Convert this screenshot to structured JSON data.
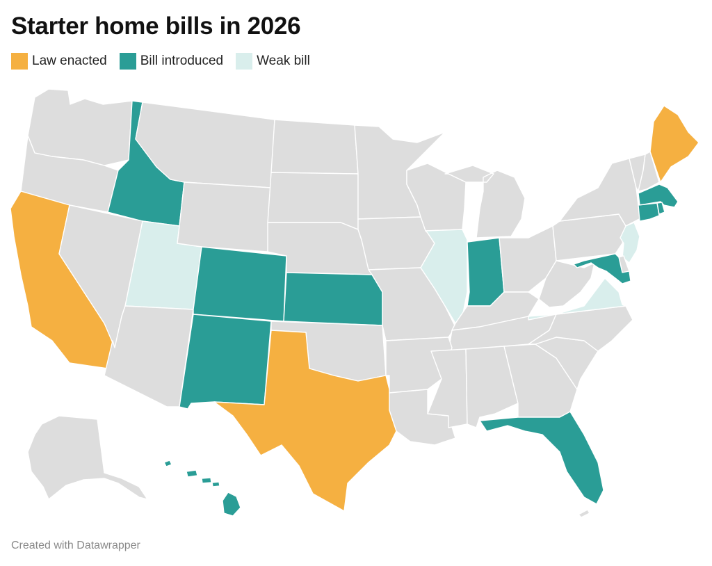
{
  "title": "Starter home bills in 2026",
  "legend": [
    {
      "key": "enacted",
      "label": "Law enacted",
      "color": "#F5B041"
    },
    {
      "key": "introduced",
      "label": "Bill introduced",
      "color": "#2A9D96"
    },
    {
      "key": "weak",
      "label": "Weak bill",
      "color": "#D9EEEC"
    }
  ],
  "no_bill_color": "#DDDDDD",
  "credit": "Created with Datawrapper",
  "state_status": {
    "Law enacted": [
      "California",
      "Texas",
      "Maine"
    ],
    "Bill introduced": [
      "Idaho",
      "Colorado",
      "New Mexico",
      "Kansas",
      "Indiana",
      "Florida",
      "Maryland",
      "Massachusetts",
      "Connecticut",
      "Rhode Island",
      "Hawaii"
    ],
    "Weak bill": [
      "Utah",
      "Illinois",
      "Virginia",
      "New Jersey"
    ]
  }
}
